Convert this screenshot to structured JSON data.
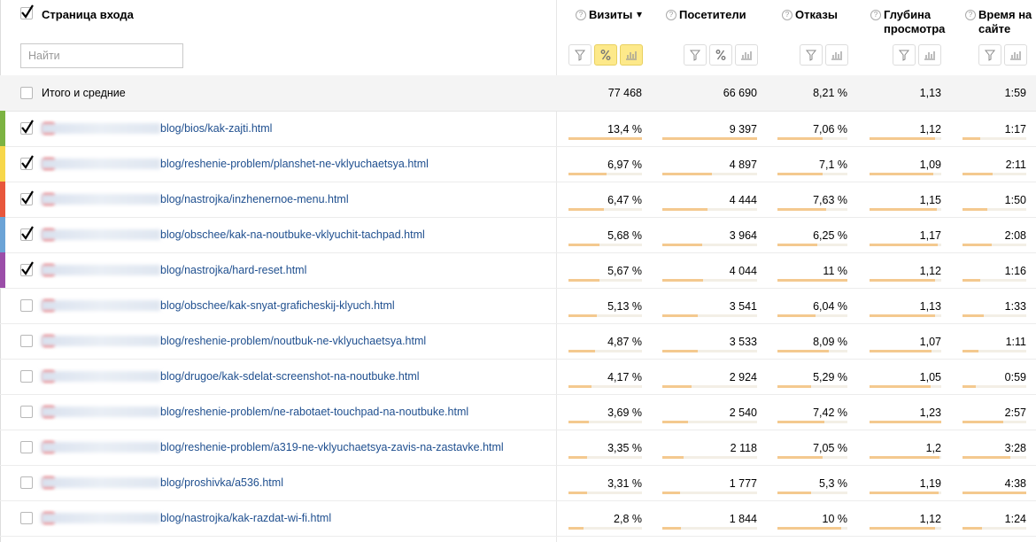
{
  "header": {
    "checked": true,
    "title": "Страница входа",
    "search_placeholder": "Найти",
    "columns": [
      {
        "label": "Визиты",
        "sort": "▾"
      },
      {
        "label": "Посетители"
      },
      {
        "label": "Отказы"
      },
      {
        "label": "Глубина просмотра"
      },
      {
        "label": "Время на сайте"
      }
    ]
  },
  "totals": {
    "label": "Итого и средние",
    "values": [
      "77 468",
      "66 690",
      "8,21 %",
      "1,13",
      "1:59"
    ]
  },
  "rows": [
    {
      "checked": true,
      "color": "#7cb342",
      "url": "blog/bios/kak-zajti.html",
      "values": [
        "13,4 %",
        "9 397",
        "7,06 %",
        "1,12",
        "1:17"
      ]
    },
    {
      "checked": true,
      "color": "#f7d74a",
      "url": "blog/reshenie-problem/planshet-ne-vklyuchaetsya.html",
      "values": [
        "6,97 %",
        "4 897",
        "7,1 %",
        "1,09",
        "2:11"
      ]
    },
    {
      "checked": true,
      "color": "#e8573c",
      "url": "blog/nastrojka/inzhenernoe-menu.html",
      "values": [
        "6,47 %",
        "4 444",
        "7,63 %",
        "1,15",
        "1:50"
      ]
    },
    {
      "checked": true,
      "color": "#6ba3d6",
      "url": "blog/obschee/kak-na-noutbuke-vklyuchit-tachpad.html",
      "values": [
        "5,68 %",
        "3 964",
        "6,25 %",
        "1,17",
        "2:08"
      ]
    },
    {
      "checked": true,
      "color": "#9b4ea8",
      "url": "blog/nastrojka/hard-reset.html",
      "values": [
        "5,67 %",
        "4 044",
        "11 %",
        "1,12",
        "1:16"
      ]
    },
    {
      "checked": false,
      "url": "blog/obschee/kak-snyat-graficheskij-klyuch.html",
      "values": [
        "5,13 %",
        "3 541",
        "6,04 %",
        "1,13",
        "1:33"
      ]
    },
    {
      "checked": false,
      "url": "blog/reshenie-problem/noutbuk-ne-vklyuchaetsya.html",
      "values": [
        "4,87 %",
        "3 533",
        "8,09 %",
        "1,07",
        "1:11"
      ]
    },
    {
      "checked": false,
      "url": "blog/drugoe/kak-sdelat-screenshot-na-noutbuke.html",
      "values": [
        "4,17 %",
        "2 924",
        "5,29 %",
        "1,05",
        "0:59"
      ]
    },
    {
      "checked": false,
      "url": "blog/reshenie-problem/ne-rabotaet-touchpad-na-noutbuke.html",
      "values": [
        "3,69 %",
        "2 540",
        "7,42 %",
        "1,23",
        "2:57"
      ]
    },
    {
      "checked": false,
      "url": "blog/reshenie-problem/a319-ne-vklyuchaetsya-zavis-na-zastavke.html",
      "values": [
        "3,35 %",
        "2 118",
        "7,05 %",
        "1,2",
        "3:28"
      ]
    },
    {
      "checked": false,
      "url": "blog/proshivka/a536.html",
      "values": [
        "3,31 %",
        "1 777",
        "5,3 %",
        "1,19",
        "4:38"
      ]
    },
    {
      "checked": false,
      "url": "blog/nastrojka/kak-razdat-wi-fi.html",
      "values": [
        "2,8 %",
        "1 844",
        "10 %",
        "1,12",
        "1:24"
      ]
    }
  ]
}
